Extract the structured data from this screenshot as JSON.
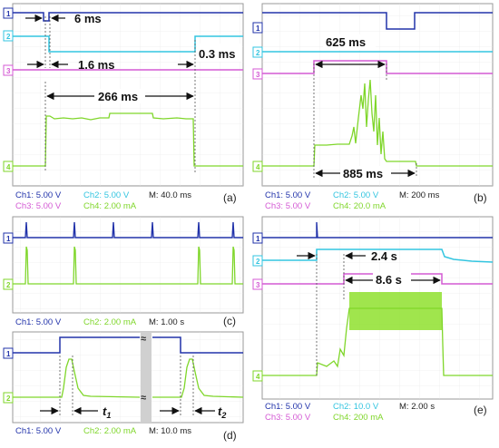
{
  "colors": {
    "ch1": "#2233aa",
    "ch2": "#33c5e0",
    "ch3": "#d45ad4",
    "ch4": "#7fd62a",
    "frame": "#9a9a9a",
    "grid": "#d8d8d8"
  },
  "panels": {
    "a": {
      "label": "(a)",
      "markers": [
        "1",
        "2",
        "3",
        "4"
      ],
      "annotations": [
        "6 ms",
        "1.6 ms",
        "0.3 ms",
        "266 ms"
      ],
      "scale": {
        "ch1": "Ch1: 5.00 V",
        "ch2": "Ch2: 5.00 V",
        "m": "M: 40.0 ms",
        "ch3": "Ch3: 5.00 V",
        "ch4": "Ch4: 2.00 mA"
      }
    },
    "b": {
      "label": "(b)",
      "markers": [
        "1",
        "2",
        "3",
        "4"
      ],
      "annotations": [
        "625 ms",
        "885 ms"
      ],
      "scale": {
        "ch1": "Ch1: 5.00 V",
        "ch2": "Ch2: 5.00 V",
        "m": "M: 200 ms",
        "ch3": "Ch3: 5.00 V",
        "ch4": "Ch4: 20.0 mA"
      }
    },
    "c": {
      "label": "(c)",
      "markers": [
        "1",
        "2"
      ],
      "scale": {
        "ch1": "Ch1: 5.00 V",
        "ch2": "Ch2: 2.00 mA",
        "m": "M: 1.00 s"
      }
    },
    "d": {
      "label": "(d)",
      "markers": [
        "1",
        "2"
      ],
      "annotations": [
        "t",
        "1",
        "t",
        "2"
      ],
      "scale": {
        "ch1": "Ch1: 5.00 V",
        "ch2": "Ch2: 2.00 mA",
        "m": "M: 10.0 ms"
      }
    },
    "e": {
      "label": "(e)",
      "markers": [
        "1",
        "2",
        "3",
        "4"
      ],
      "annotations": [
        "2.4 s",
        "8.6 s"
      ],
      "scale": {
        "ch1": "Ch1: 5.00 V",
        "ch2": "Ch2: 10.0 V",
        "m": "M: 2.00 s",
        "ch3": "Ch3: 5.00 V",
        "ch4": "Ch4: 200 mA"
      }
    }
  }
}
